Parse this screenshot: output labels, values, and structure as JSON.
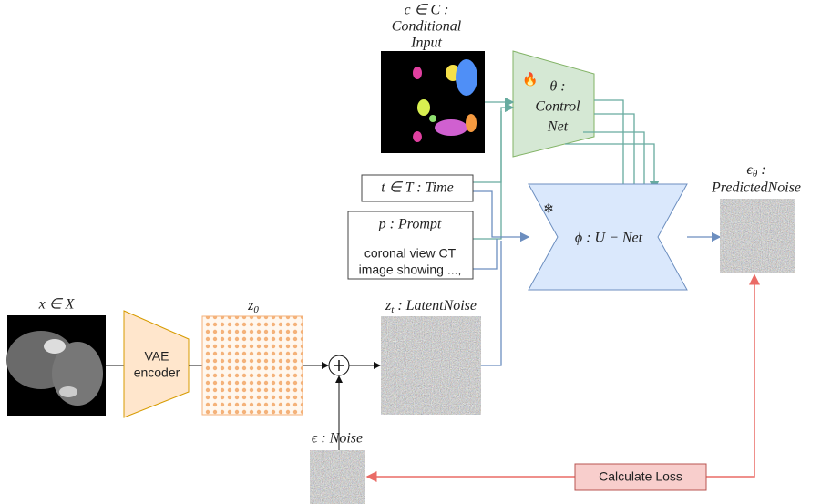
{
  "condition": {
    "line1": "c ∈ C :",
    "line2": "Conditional",
    "line3": "Input"
  },
  "controlnet": {
    "symbol": "θ :",
    "line1": "Control",
    "line2": "Net"
  },
  "time": {
    "label": "t ∈ T : Time"
  },
  "prompt": {
    "title": "p : Prompt",
    "line1": "coronal view CT",
    "line2": "image showing ...,"
  },
  "unet": {
    "label": "ϕ : U − Net"
  },
  "predicted_noise": {
    "symbol": "ϵ",
    "subscript": "θ",
    "rest": " :",
    "label": "PredictedNoise"
  },
  "input": {
    "label": "x ∈ X"
  },
  "vae": {
    "line1": "VAE",
    "line2": "encoder"
  },
  "z0": {
    "symbol": "z",
    "subscript": "0"
  },
  "latent": {
    "symbol": "z",
    "subscript": "t",
    "rest": " : LatentNoise"
  },
  "noise": {
    "label": "ϵ : Noise"
  },
  "loss": {
    "label": "Calculate Loss"
  }
}
